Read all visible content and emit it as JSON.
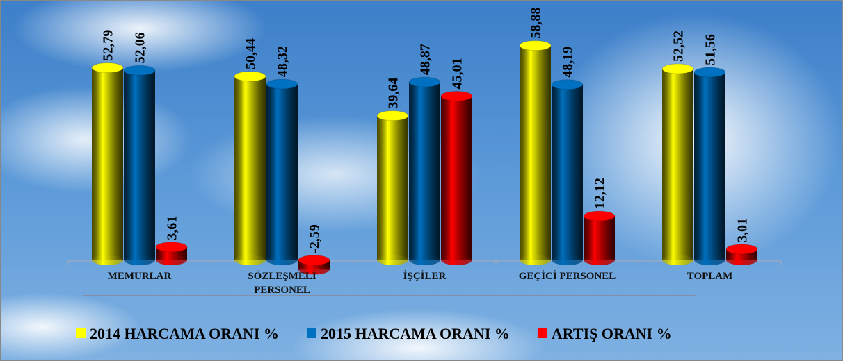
{
  "chart_data": {
    "type": "bar",
    "categories": [
      "MEMURLAR",
      "SÖZLEŞMELİ PERSONEL",
      "İŞÇİLER",
      "GEÇİCİ PERSONEL",
      "TOPLAM"
    ],
    "series": [
      {
        "name": "2014 HARCAMA ORANI %",
        "color": "#ffff00",
        "values": [
          52.79,
          50.44,
          39.64,
          58.88,
          52.52
        ],
        "value_labels": [
          "52,79",
          "50,44",
          "39,64",
          "58,88",
          "52,52"
        ]
      },
      {
        "name": "2015 HARCAMA ORANI %",
        "color": "#0070c0",
        "values": [
          52.06,
          48.32,
          48.87,
          48.19,
          51.56
        ],
        "value_labels": [
          "52,06",
          "48,32",
          "48,87",
          "48,19",
          "51,56"
        ]
      },
      {
        "name": "ARTIŞ ORANI %",
        "color": "#ff0000",
        "values": [
          3.61,
          -2.59,
          45.01,
          12.12,
          3.01
        ],
        "value_labels": [
          "3,61",
          "-2,59",
          "45,01",
          "12,12",
          "3,01"
        ]
      }
    ],
    "ylim": [
      -5,
      65
    ],
    "legend": "bottom"
  }
}
